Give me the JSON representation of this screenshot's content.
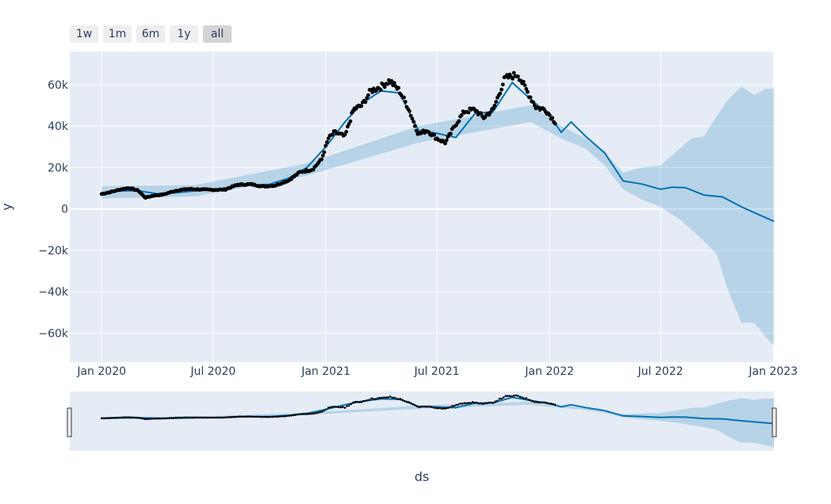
{
  "range_selector": {
    "buttons": [
      {
        "label": "1w",
        "active": false
      },
      {
        "label": "1m",
        "active": false
      },
      {
        "label": "6m",
        "active": false
      },
      {
        "label": "1y",
        "active": false
      },
      {
        "label": "all",
        "active": true
      }
    ]
  },
  "chart_data": {
    "type": "line",
    "xlabel": "ds",
    "ylabel": "y",
    "x_range": [
      "2019-11-10",
      "2023-01-02"
    ],
    "ylim": [
      -74000,
      76000
    ],
    "x_ticks": [
      {
        "date": "2020-01-01",
        "label": "Jan 2020"
      },
      {
        "date": "2020-07-01",
        "label": "Jul 2020"
      },
      {
        "date": "2021-01-01",
        "label": "Jan 2021"
      },
      {
        "date": "2021-07-01",
        "label": "Jul 2021"
      },
      {
        "date": "2022-01-01",
        "label": "Jan 2022"
      },
      {
        "date": "2022-07-01",
        "label": "Jul 2022"
      },
      {
        "date": "2023-01-01",
        "label": "Jan 2023"
      }
    ],
    "y_ticks": [
      {
        "value": 60000,
        "label": "60k"
      },
      {
        "value": 40000,
        "label": "40k"
      },
      {
        "value": 20000,
        "label": "20k"
      },
      {
        "value": 0,
        "label": "0"
      },
      {
        "value": -20000,
        "label": "−20k"
      },
      {
        "value": -40000,
        "label": "−40k"
      },
      {
        "value": -60000,
        "label": "−60k"
      }
    ],
    "grid": true,
    "legend": "none",
    "colors": {
      "plot_bg": "#e5ecf6",
      "trend": "#0072b2",
      "band": "rgba(0,114,178,0.2)",
      "actual": "#000000",
      "grid": "#ffffff",
      "text": "#2a3f5f"
    },
    "series": [
      {
        "kind": "actual",
        "x": [
          "2020-01-01",
          "2020-01-15",
          "2020-02-01",
          "2020-02-15",
          "2020-03-01",
          "2020-03-12",
          "2020-03-25",
          "2020-04-10",
          "2020-05-01",
          "2020-05-20",
          "2020-06-10",
          "2020-07-01",
          "2020-07-20",
          "2020-08-10",
          "2020-09-01",
          "2020-09-20",
          "2020-10-10",
          "2020-11-01",
          "2020-11-20",
          "2020-12-10",
          "2020-12-25",
          "2021-01-05",
          "2021-01-15",
          "2021-02-01",
          "2021-02-15",
          "2021-03-01",
          "2021-03-15",
          "2021-04-01",
          "2021-04-15",
          "2021-05-01",
          "2021-05-15",
          "2021-06-01",
          "2021-06-15",
          "2021-07-01",
          "2021-07-15",
          "2021-08-01",
          "2021-08-15",
          "2021-09-01",
          "2021-09-15",
          "2021-10-01",
          "2021-10-20",
          "2021-11-10",
          "2021-11-25",
          "2021-12-10",
          "2021-12-25",
          "2022-01-10"
        ],
        "y": [
          7200,
          8100,
          9400,
          10100,
          8800,
          5400,
          6400,
          6900,
          8800,
          9600,
          9400,
          9200,
          9300,
          11700,
          11900,
          10800,
          11300,
          13700,
          17800,
          19000,
          24000,
          34000,
          37000,
          35000,
          48000,
          50000,
          57000,
          59000,
          62000,
          57000,
          49000,
          36000,
          38000,
          34000,
          32000,
          41000,
          47000,
          48000,
          44000,
          48000,
          63000,
          65000,
          57000,
          49000,
          48000,
          42000
        ]
      },
      {
        "kind": "forecast",
        "x": [
          "2020-01-01",
          "2020-02-01",
          "2020-03-01",
          "2020-04-01",
          "2020-05-01",
          "2020-06-01",
          "2020-07-01",
          "2020-08-01",
          "2020-09-01",
          "2020-10-01",
          "2020-11-01",
          "2020-12-01",
          "2021-01-01",
          "2021-02-01",
          "2021-03-01",
          "2021-04-01",
          "2021-05-01",
          "2021-06-01",
          "2021-07-01",
          "2021-08-01",
          "2021-09-01",
          "2021-10-01",
          "2021-11-01",
          "2021-12-01",
          "2022-01-01",
          "2022-01-20",
          "2022-02-05",
          "2022-03-01",
          "2022-04-01",
          "2022-05-01",
          "2022-06-01",
          "2022-07-01",
          "2022-07-20",
          "2022-08-10",
          "2022-09-10",
          "2022-10-10",
          "2022-11-10",
          "2023-01-02"
        ],
        "y": [
          7800,
          8800,
          8700,
          7300,
          7800,
          8700,
          9200,
          10600,
          11500,
          11900,
          14800,
          20000,
          30000,
          42000,
          51000,
          57000,
          56000,
          38000,
          36500,
          34500,
          46000,
          47000,
          61000,
          53000,
          45000,
          37000,
          42000,
          35000,
          27000,
          13500,
          12000,
          9500,
          10500,
          10300,
          6700,
          5800,
          1000,
          -6000
        ]
      },
      {
        "kind": "upper_bound",
        "x": [
          "2020-01-01",
          "2020-06-01",
          "2020-12-01",
          "2021-06-01",
          "2021-12-01",
          "2022-01-20",
          "2022-03-01",
          "2022-04-01",
          "2022-05-01",
          "2022-06-01",
          "2022-07-01",
          "2022-08-01",
          "2022-08-20",
          "2022-09-10",
          "2022-10-01",
          "2022-10-20",
          "2022-11-10",
          "2022-12-01",
          "2022-12-20",
          "2023-01-02"
        ],
        "y": [
          11000,
          11500,
          22000,
          40000,
          50000,
          40000,
          34000,
          27000,
          17500,
          20000,
          21000,
          29000,
          34000,
          35000,
          45000,
          53000,
          59000,
          55000,
          58000,
          58000
        ]
      },
      {
        "kind": "lower_bound",
        "x": [
          "2020-01-01",
          "2020-06-01",
          "2020-12-01",
          "2021-06-01",
          "2021-12-01",
          "2022-01-20",
          "2022-03-01",
          "2022-04-01",
          "2022-05-01",
          "2022-06-01",
          "2022-07-01",
          "2022-08-01",
          "2022-09-01",
          "2022-10-01",
          "2022-10-20",
          "2022-11-10",
          "2022-12-01",
          "2022-12-20",
          "2023-01-02"
        ],
        "y": [
          5000,
          6000,
          16000,
          32000,
          42000,
          34000,
          29000,
          21000,
          9500,
          4500,
          1000,
          -5000,
          -13000,
          -22000,
          -40000,
          -55000,
          -55000,
          -62000,
          -66000
        ]
      }
    ]
  }
}
